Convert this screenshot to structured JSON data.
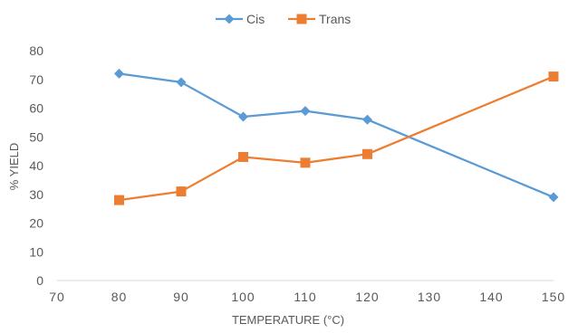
{
  "chart_data": {
    "type": "line",
    "title": "",
    "xlabel": "TEMPERATURE (°C)",
    "ylabel": "% YIELD",
    "xlim": [
      70,
      150
    ],
    "ylim": [
      0,
      80
    ],
    "xticks": [
      70,
      80,
      90,
      100,
      110,
      120,
      130,
      140,
      150
    ],
    "yticks": [
      0,
      10,
      20,
      30,
      40,
      50,
      60,
      70,
      80
    ],
    "grid": false,
    "legend_position": "top-center",
    "series": [
      {
        "name": "Cis",
        "color": "#5B9BD5",
        "marker": "diamond",
        "x": [
          80,
          90,
          100,
          110,
          120,
          150
        ],
        "y": [
          72,
          69,
          57,
          59,
          56,
          29
        ]
      },
      {
        "name": "Trans",
        "color": "#ED7D31",
        "marker": "square",
        "x": [
          80,
          90,
          100,
          110,
          120,
          150
        ],
        "y": [
          28,
          31,
          43,
          41,
          44,
          71
        ]
      }
    ]
  }
}
